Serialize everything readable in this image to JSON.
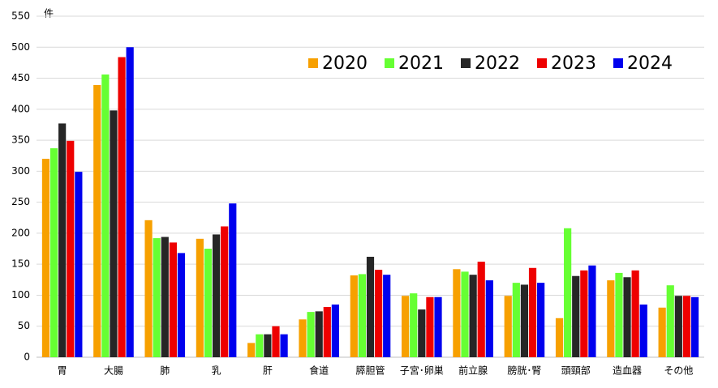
{
  "chart_data": {
    "type": "bar",
    "y_label": "件",
    "categories": [
      "胃",
      "大腸",
      "肺",
      "乳",
      "肝",
      "食道",
      "膵胆管",
      "子宮･卵巣",
      "前立腺",
      "膀胱･腎",
      "頭頸部",
      "造血器",
      "その他"
    ],
    "series": [
      {
        "name": "2020",
        "color": "#f7a000",
        "values": [
          320,
          439,
          221,
          191,
          23,
          61,
          132,
          99,
          142,
          99,
          63,
          124,
          80
        ]
      },
      {
        "name": "2021",
        "color": "#66ff33",
        "values": [
          337,
          456,
          192,
          175,
          37,
          73,
          134,
          103,
          138,
          120,
          208,
          136,
          116
        ]
      },
      {
        "name": "2022",
        "color": "#262626",
        "values": [
          377,
          398,
          194,
          198,
          37,
          74,
          162,
          77,
          133,
          117,
          131,
          129,
          99
        ]
      },
      {
        "name": "2023",
        "color": "#ee0000",
        "values": [
          349,
          484,
          185,
          211,
          50,
          81,
          141,
          97,
          154,
          144,
          140,
          140,
          99
        ]
      },
      {
        "name": "2024",
        "color": "#0000ee",
        "values": [
          299,
          500,
          168,
          248,
          37,
          85,
          133,
          97,
          124,
          120,
          148,
          85,
          97
        ]
      }
    ],
    "ylim": [
      0,
      550
    ],
    "yticks": [
      0,
      50,
      100,
      150,
      200,
      250,
      300,
      350,
      400,
      450,
      500,
      550
    ],
    "grid": true
  }
}
